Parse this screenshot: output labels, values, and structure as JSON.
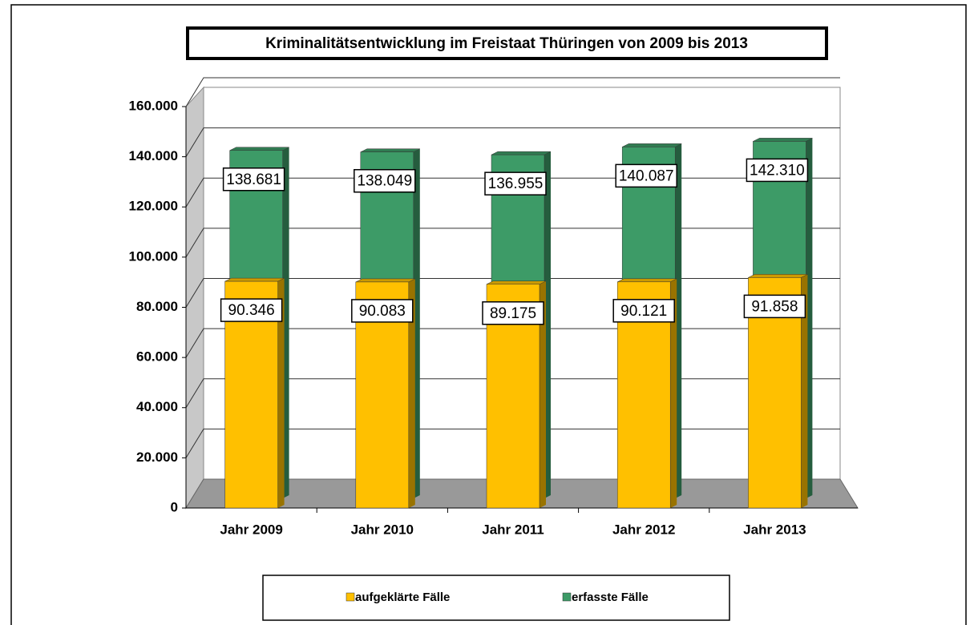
{
  "chart_data": {
    "type": "bar3d",
    "title": "Kriminalitätsentwicklung  im Freistaat Thüringen  von 2009 bis 2013",
    "categories": [
      "Jahr 2009",
      "Jahr 2010",
      "Jahr 2011",
      "Jahr 2012",
      "Jahr 2013"
    ],
    "series": [
      {
        "name": "aufgeklärte Fälle",
        "color": "#ffc000",
        "values": [
          90346,
          90083,
          89175,
          90121,
          91858
        ],
        "value_labels": [
          "90.346",
          "90.083",
          "89.175",
          "90.121",
          "91.858"
        ]
      },
      {
        "name": "erfasste Fälle",
        "color": "#3d9b67",
        "values": [
          138681,
          138049,
          136955,
          140087,
          142310
        ],
        "value_labels": [
          "138.681",
          "138.049",
          "136.955",
          "140.087",
          "142.310"
        ]
      }
    ],
    "ylim": [
      0,
      160000
    ],
    "yticks": [
      0,
      {
        "value": 20000,
        "label": "20.000"
      },
      {
        "value": 40000,
        "label": "40.000"
      },
      {
        "value": 60000,
        "label": "60.000"
      },
      {
        "value": 80000,
        "label": "80.000"
      },
      {
        "value": 100000,
        "label": "100.000"
      },
      {
        "value": 120000,
        "label": "120.000"
      },
      {
        "value": 140000,
        "label": "140.000"
      },
      {
        "value": 160000,
        "label": "160.000"
      }
    ],
    "grid": true,
    "legend": "bottom"
  }
}
